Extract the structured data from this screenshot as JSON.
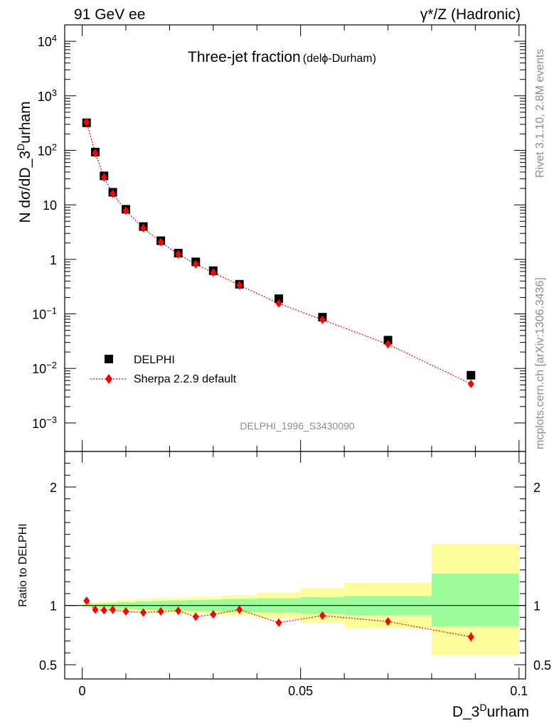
{
  "header": {
    "left": "91 GeV ee",
    "right": "γ*/Z (Hadronic)"
  },
  "side_labels": {
    "rivet": "Rivet 3.1.10,  2.8M events",
    "mcplots": "mcplots.cern.ch [arXiv:1306.3436]"
  },
  "chart_data": {
    "type": "scatter",
    "title": "Three-jet fraction",
    "title_note": "(delϕ-Durham)",
    "analysis_id": "DELPHI_1996_S3430090",
    "xlabel": "D_3^Durham",
    "ylabel": "N dσ/dD_3^Durham",
    "ratio_ylabel": "Ratio to DELPHI",
    "x_scale": "linear",
    "y_scale": "log",
    "xlim": [
      -0.004,
      0.1015
    ],
    "ylim": [
      0.0003,
      20000
    ],
    "ratio_ylim": [
      0.38,
      2.3
    ],
    "x_ticks": [
      0,
      0.05,
      0.1
    ],
    "x_tick_labels": [
      "0",
      "0.05",
      "0.1"
    ],
    "y_ticks": [
      0.001,
      0.01,
      0.1,
      1,
      10,
      100,
      1000,
      10000
    ],
    "y_tick_labels": [
      {
        "b": "10",
        "e": "−3"
      },
      {
        "b": "10",
        "e": "−2"
      },
      {
        "b": "10",
        "e": "−1"
      },
      {
        "b": "1",
        "e": ""
      },
      {
        "b": "10",
        "e": ""
      },
      {
        "b": "10",
        "e": "2"
      },
      {
        "b": "10",
        "e": "3"
      },
      {
        "b": "10",
        "e": "4"
      }
    ],
    "ratio_ticks": [
      0.5,
      1,
      2
    ],
    "ratio_tick_labels": [
      "0.5",
      "1",
      "2"
    ],
    "legend": {
      "position": "lower-left",
      "entries": [
        "DELPHI",
        "Sherpa 2.2.9 default"
      ]
    },
    "bins": [
      [
        0,
        0.002
      ],
      [
        0.002,
        0.004
      ],
      [
        0.004,
        0.006
      ],
      [
        0.006,
        0.008
      ],
      [
        0.008,
        0.012
      ],
      [
        0.012,
        0.016
      ],
      [
        0.016,
        0.02
      ],
      [
        0.02,
        0.024
      ],
      [
        0.024,
        0.028
      ],
      [
        0.028,
        0.032
      ],
      [
        0.032,
        0.04
      ],
      [
        0.04,
        0.05
      ],
      [
        0.05,
        0.06
      ],
      [
        0.06,
        0.08
      ],
      [
        0.08,
        0.1
      ]
    ],
    "series": [
      {
        "name": "DELPHI",
        "marker": "square",
        "color": "#000000",
        "x": [
          0.001,
          0.003,
          0.005,
          0.007,
          0.01,
          0.014,
          0.018,
          0.022,
          0.026,
          0.03,
          0.036,
          0.045,
          0.055,
          0.07,
          0.089
        ],
        "y": [
          320,
          93,
          34,
          17,
          8.3,
          4.0,
          2.2,
          1.3,
          0.9,
          0.62,
          0.35,
          0.19,
          0.087,
          0.033,
          0.0075
        ]
      },
      {
        "name": "Sherpa 2.2.9 default",
        "marker": "diamond",
        "color": "#ff0000",
        "line": "dotted",
        "x": [
          0.001,
          0.003,
          0.005,
          0.007,
          0.01,
          0.014,
          0.018,
          0.022,
          0.026,
          0.03,
          0.036,
          0.045,
          0.055,
          0.07,
          0.089
        ],
        "y": [
          330,
          89,
          32,
          16,
          7.8,
          3.75,
          2.08,
          1.24,
          0.815,
          0.575,
          0.335,
          0.156,
          0.078,
          0.0278,
          0.0052
        ]
      }
    ],
    "ratio": {
      "x": [
        0.001,
        0.003,
        0.005,
        0.007,
        0.01,
        0.014,
        0.018,
        0.022,
        0.026,
        0.03,
        0.036,
        0.045,
        0.055,
        0.07,
        0.089
      ],
      "values": [
        1.04,
        0.965,
        0.96,
        0.965,
        0.95,
        0.94,
        0.95,
        0.955,
        0.905,
        0.925,
        0.965,
        0.855,
        0.915,
        0.865,
        0.735
      ],
      "errors": [
        0.01,
        0.008,
        0.008,
        0.008,
        0.008,
        0.008,
        0.008,
        0.008,
        0.01,
        0.01,
        0.01,
        0.012,
        0.012,
        0.015,
        0.04
      ],
      "band_inner": [
        [
          0.993,
          1.007
        ],
        [
          0.987,
          1.013
        ],
        [
          0.982,
          1.018
        ],
        [
          0.979,
          1.021
        ],
        [
          0.972,
          1.028
        ],
        [
          0.966,
          1.034
        ],
        [
          0.962,
          1.038
        ],
        [
          0.958,
          1.042
        ],
        [
          0.955,
          1.045
        ],
        [
          0.951,
          1.049
        ],
        [
          0.945,
          1.055
        ],
        [
          0.94,
          1.06
        ],
        [
          0.93,
          1.07
        ],
        [
          0.92,
          1.08
        ],
        [
          0.825,
          1.27
        ]
      ],
      "band_outer": [
        [
          0.985,
          1.015
        ],
        [
          0.975,
          1.025
        ],
        [
          0.967,
          1.033
        ],
        [
          0.962,
          1.038
        ],
        [
          0.952,
          1.048
        ],
        [
          0.945,
          1.055
        ],
        [
          0.94,
          1.06
        ],
        [
          0.935,
          1.065
        ],
        [
          0.93,
          1.07
        ],
        [
          0.925,
          1.075
        ],
        [
          0.915,
          1.085
        ],
        [
          0.89,
          1.11
        ],
        [
          0.855,
          1.145
        ],
        [
          0.81,
          1.19
        ],
        [
          0.58,
          1.52
        ]
      ]
    },
    "colors": {
      "band_inner": "#9cfc9c",
      "band_outer": "#fdfd9c",
      "data": "#000000",
      "mc": "#ff0000"
    }
  }
}
